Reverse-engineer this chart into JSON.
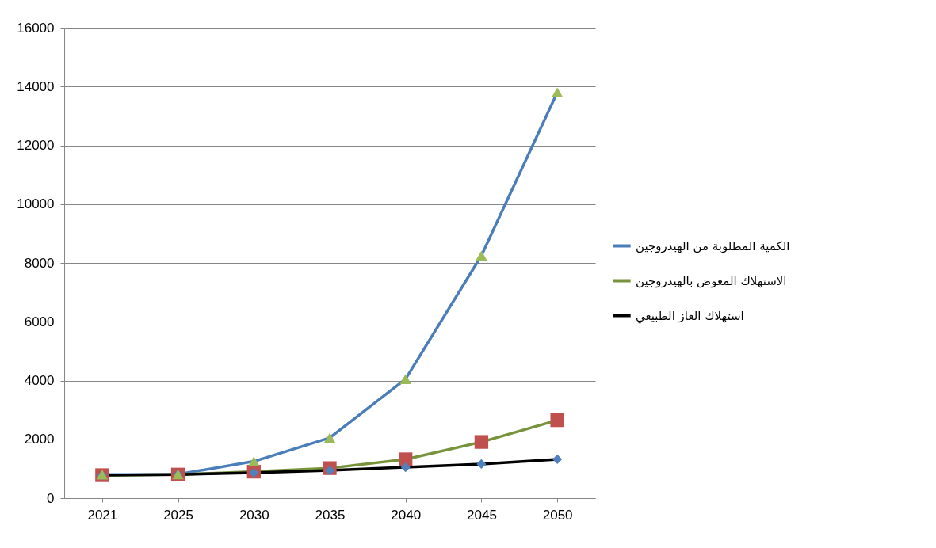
{
  "chart_data": {
    "type": "line",
    "categories": [
      "2021",
      "2025",
      "2030",
      "2035",
      "2040",
      "2045",
      "2050"
    ],
    "series": [
      {
        "name": "الكمية المطلوبة من الهيدروجين",
        "color": "#4a7ebb",
        "marker": "triangle",
        "colors": [
          "#9bbb59",
          "#9bbb59",
          "#9bbb59",
          "#9bbb59",
          "#9bbb59",
          "#9bbb59",
          "#9bbb59"
        ],
        "values": [
          800,
          810,
          1250,
          2050,
          4050,
          8250,
          13800
        ]
      },
      {
        "name": "الاستهلاك المعوض بالهيدروجين",
        "color": "#77933c",
        "marker": "square",
        "colors": [
          "#c0504d",
          "#c0504d",
          "#c0504d",
          "#c0504d",
          "#c0504d",
          "#c0504d",
          "#c0504d"
        ],
        "values": [
          780,
          800,
          900,
          1020,
          1320,
          1910,
          2650
        ]
      },
      {
        "name": "استهلاك الغاز الطبيعي",
        "color": "#000000",
        "marker": "diamond",
        "colors": [
          "#4f81bd",
          "#4f81bd",
          "#4f81bd",
          "#4f81bd",
          "#4f81bd",
          "#4f81bd",
          "#4f81bd"
        ],
        "values": [
          780,
          800,
          860,
          940,
          1050,
          1160,
          1320
        ]
      }
    ],
    "ylim": [
      0,
      16000
    ],
    "yticks": [
      0,
      2000,
      4000,
      6000,
      8000,
      10000,
      12000,
      14000,
      16000
    ],
    "grid": "y",
    "legend": "right",
    "line_style": "solid"
  }
}
